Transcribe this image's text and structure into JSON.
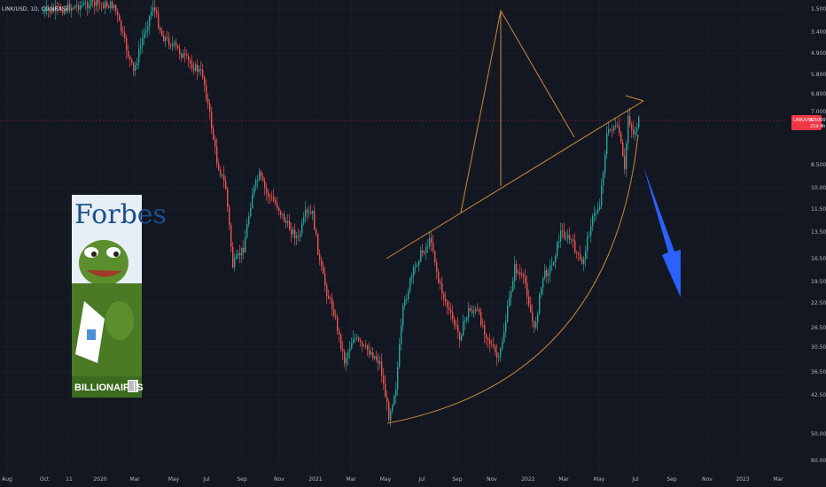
{
  "header": {
    "symbol_text": "LINK/USD, 1D, COINBASE"
  },
  "price_badge": {
    "value": "6.5000",
    "sub": "21d 4h",
    "color": "#f23645"
  },
  "colors": {
    "up": "#26a69a",
    "down": "#ef5350",
    "drawing": "#c98a3a",
    "arrow": "#2962ff",
    "background": "#131722"
  },
  "chart_data": {
    "type": "candlestick",
    "yscale": "log-inverted",
    "ylim": [
      1.5,
      70
    ],
    "y_ticks": [
      "1.5000",
      "3.4000",
      "4.9000",
      "5.8000",
      "6.8000",
      "7.0000",
      "8.5000",
      "10.0000",
      "11.5000",
      "13.5000",
      "16.5000",
      "19.5000",
      "22.5000",
      "26.5000",
      "30.5000",
      "36.5000",
      "42.5000",
      "50.0000",
      "60.0000"
    ],
    "x_ticks": [
      "Aug",
      "Oct",
      "11",
      "2020",
      "Mar",
      "May",
      "Jul",
      "Sep",
      "Nov",
      "2021",
      "Mar",
      "May",
      "Jul",
      "Sep",
      "Nov",
      "2022",
      "Mar",
      "May",
      "Jul",
      "Sep",
      "Nov",
      "2023",
      "Mar"
    ],
    "last_price": 6.5,
    "series": [
      {
        "name": "LINK/USD",
        "ohlc": []
      }
    ]
  },
  "forbes": {
    "title": "Forbes",
    "caption": "BILLIONAIRES"
  }
}
